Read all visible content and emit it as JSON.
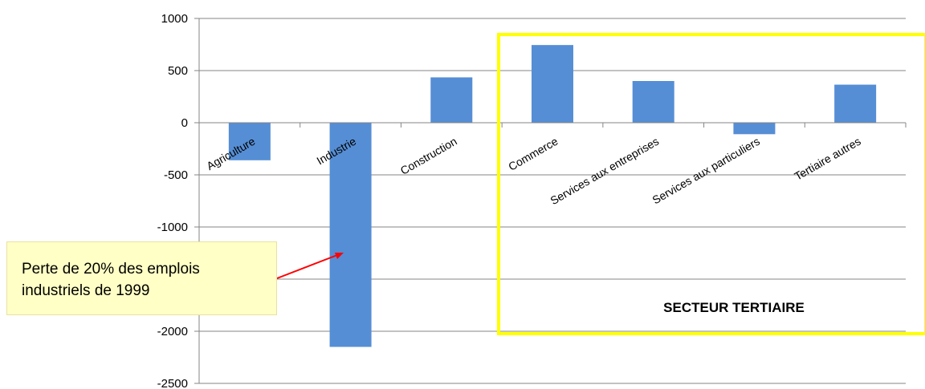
{
  "chart_data": {
    "type": "bar",
    "categories": [
      "Agriculture",
      "Industrie",
      "Construction",
      "Commerce",
      "Services aux entreprises",
      "Services aux particuliers",
      "Tertiaire autres"
    ],
    "values": [
      -360,
      -2150,
      435,
      745,
      400,
      -110,
      365
    ],
    "ylim": [
      -2500,
      1000
    ],
    "yticks": [
      1000,
      500,
      0,
      -500,
      -1000,
      -1500,
      -2000,
      -2500
    ],
    "grid": true,
    "bar_color": "#558ed5",
    "annotations": {
      "callout_lines": [
        "Perte de 20% des emplois",
        "industriels de 1999"
      ],
      "callout_target": "Industrie",
      "highlight_box_label": "SECTEUR TERTIAIRE",
      "highlight_box_color": "#ffff00",
      "arrow_color": "#ff0000"
    }
  }
}
